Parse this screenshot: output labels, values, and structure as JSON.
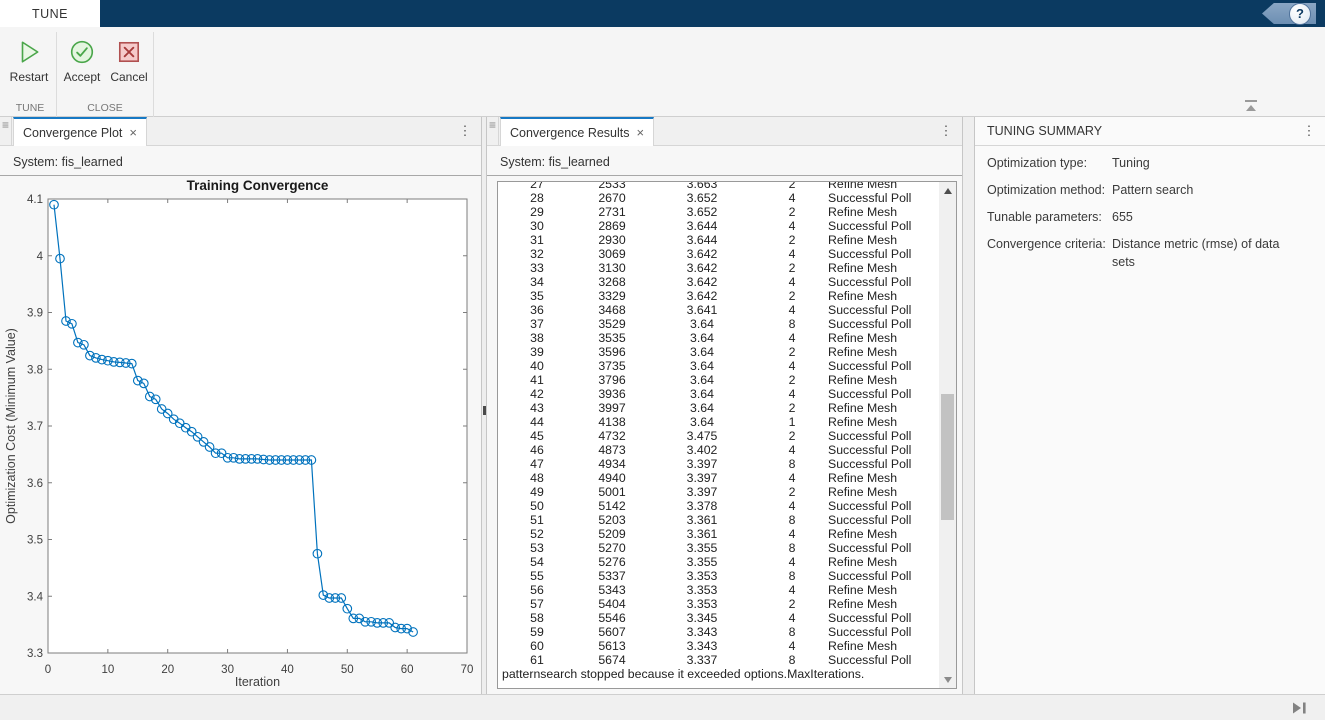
{
  "titlebar": {
    "tab_label": "TUNE",
    "help_glyph": "?"
  },
  "ribbon": {
    "restart_label": "Restart",
    "accept_label": "Accept",
    "cancel_label": "Cancel",
    "group_tune_label": "TUNE",
    "group_close_label": "CLOSE"
  },
  "convergence_plot_panel": {
    "tab_label": "Convergence Plot",
    "close_glyph": "×",
    "menu_glyph": "⋮",
    "grip_glyph": "≡",
    "system_label": "System: fis_learned"
  },
  "chart_data": {
    "type": "line",
    "title": "Training Convergence",
    "xlabel": "Iteration",
    "ylabel": "Optimization Cost (Minimum Value)",
    "xlim": [
      0,
      70
    ],
    "ylim": [
      3.3,
      4.1
    ],
    "xticks": [
      0,
      10,
      20,
      30,
      40,
      50,
      60,
      70
    ],
    "yticks": [
      3.3,
      3.4,
      3.5,
      3.6,
      3.7,
      3.8,
      3.9,
      4,
      4.1
    ],
    "grid": false,
    "marker": "circle",
    "line_color": "#0072bd",
    "x": [
      1,
      2,
      3,
      4,
      5,
      6,
      7,
      8,
      9,
      10,
      11,
      12,
      13,
      14,
      15,
      16,
      17,
      18,
      19,
      20,
      21,
      22,
      23,
      24,
      25,
      26,
      27,
      28,
      29,
      30,
      31,
      32,
      33,
      34,
      35,
      36,
      37,
      38,
      39,
      40,
      41,
      42,
      43,
      44,
      45,
      46,
      47,
      48,
      49,
      50,
      51,
      52,
      53,
      54,
      55,
      56,
      57,
      58,
      59,
      60,
      61
    ],
    "y": [
      4.09,
      3.995,
      3.885,
      3.88,
      3.847,
      3.843,
      3.824,
      3.82,
      3.817,
      3.815,
      3.813,
      3.812,
      3.811,
      3.81,
      3.78,
      3.775,
      3.752,
      3.747,
      3.73,
      3.722,
      3.712,
      3.705,
      3.697,
      3.69,
      3.681,
      3.672,
      3.663,
      3.652,
      3.652,
      3.644,
      3.644,
      3.642,
      3.642,
      3.642,
      3.642,
      3.641,
      3.64,
      3.64,
      3.64,
      3.64,
      3.64,
      3.64,
      3.64,
      3.64,
      3.475,
      3.402,
      3.397,
      3.397,
      3.397,
      3.378,
      3.361,
      3.361,
      3.355,
      3.355,
      3.353,
      3.353,
      3.353,
      3.345,
      3.343,
      3.343,
      3.337
    ]
  },
  "convergence_results_panel": {
    "tab_label": "Convergence Results",
    "close_glyph": "×",
    "menu_glyph": "⋮",
    "grip_glyph": "≡",
    "system_label": "System: fis_learned",
    "table_rows": [
      [
        27,
        2533,
        "3.663",
        2,
        "Refine Mesh"
      ],
      [
        28,
        2670,
        "3.652",
        4,
        "Successful Poll"
      ],
      [
        29,
        2731,
        "3.652",
        2,
        "Refine Mesh"
      ],
      [
        30,
        2869,
        "3.644",
        4,
        "Successful Poll"
      ],
      [
        31,
        2930,
        "3.644",
        2,
        "Refine Mesh"
      ],
      [
        32,
        3069,
        "3.642",
        4,
        "Successful Poll"
      ],
      [
        33,
        3130,
        "3.642",
        2,
        "Refine Mesh"
      ],
      [
        34,
        3268,
        "3.642",
        4,
        "Successful Poll"
      ],
      [
        35,
        3329,
        "3.642",
        2,
        "Refine Mesh"
      ],
      [
        36,
        3468,
        "3.641",
        4,
        "Successful Poll"
      ],
      [
        37,
        3529,
        "3.64",
        8,
        "Successful Poll"
      ],
      [
        38,
        3535,
        "3.64",
        4,
        "Refine Mesh"
      ],
      [
        39,
        3596,
        "3.64",
        2,
        "Refine Mesh"
      ],
      [
        40,
        3735,
        "3.64",
        4,
        "Successful Poll"
      ],
      [
        41,
        3796,
        "3.64",
        2,
        "Refine Mesh"
      ],
      [
        42,
        3936,
        "3.64",
        4,
        "Successful Poll"
      ],
      [
        43,
        3997,
        "3.64",
        2,
        "Refine Mesh"
      ],
      [
        44,
        4138,
        "3.64",
        1,
        "Refine Mesh"
      ],
      [
        45,
        4732,
        "3.475",
        2,
        "Successful Poll"
      ],
      [
        46,
        4873,
        "3.402",
        4,
        "Successful Poll"
      ],
      [
        47,
        4934,
        "3.397",
        8,
        "Successful Poll"
      ],
      [
        48,
        4940,
        "3.397",
        4,
        "Refine Mesh"
      ],
      [
        49,
        5001,
        "3.397",
        2,
        "Refine Mesh"
      ],
      [
        50,
        5142,
        "3.378",
        4,
        "Successful Poll"
      ],
      [
        51,
        5203,
        "3.361",
        8,
        "Successful Poll"
      ],
      [
        52,
        5209,
        "3.361",
        4,
        "Refine Mesh"
      ],
      [
        53,
        5270,
        "3.355",
        8,
        "Successful Poll"
      ],
      [
        54,
        5276,
        "3.355",
        4,
        "Refine Mesh"
      ],
      [
        55,
        5337,
        "3.353",
        8,
        "Successful Poll"
      ],
      [
        56,
        5343,
        "3.353",
        4,
        "Refine Mesh"
      ],
      [
        57,
        5404,
        "3.353",
        2,
        "Refine Mesh"
      ],
      [
        58,
        5546,
        "3.345",
        4,
        "Successful Poll"
      ],
      [
        59,
        5607,
        "3.343",
        8,
        "Successful Poll"
      ],
      [
        60,
        5613,
        "3.343",
        4,
        "Refine Mesh"
      ],
      [
        61,
        5674,
        "3.337",
        8,
        "Successful Poll"
      ]
    ],
    "status_line": "patternsearch stopped because it exceeded options.MaxIterations."
  },
  "tuning_summary_panel": {
    "title": "TUNING SUMMARY",
    "menu_glyph": "⋮",
    "rows": [
      {
        "label": "Optimization type:",
        "value": "Tuning"
      },
      {
        "label": "Optimization method:",
        "value": "Pattern search"
      },
      {
        "label": "Tunable parameters:",
        "value": "655"
      },
      {
        "label": "Convergence criteria:",
        "value": "Distance metric (rmse) of data sets"
      }
    ]
  },
  "colors": {
    "titlebar_navy": "#0b3a61",
    "tab_accent_blue": "#1779c4",
    "plot_line_blue": "#0072bd",
    "restart_green": "#4aa64a",
    "cancel_red": "#b05050"
  }
}
